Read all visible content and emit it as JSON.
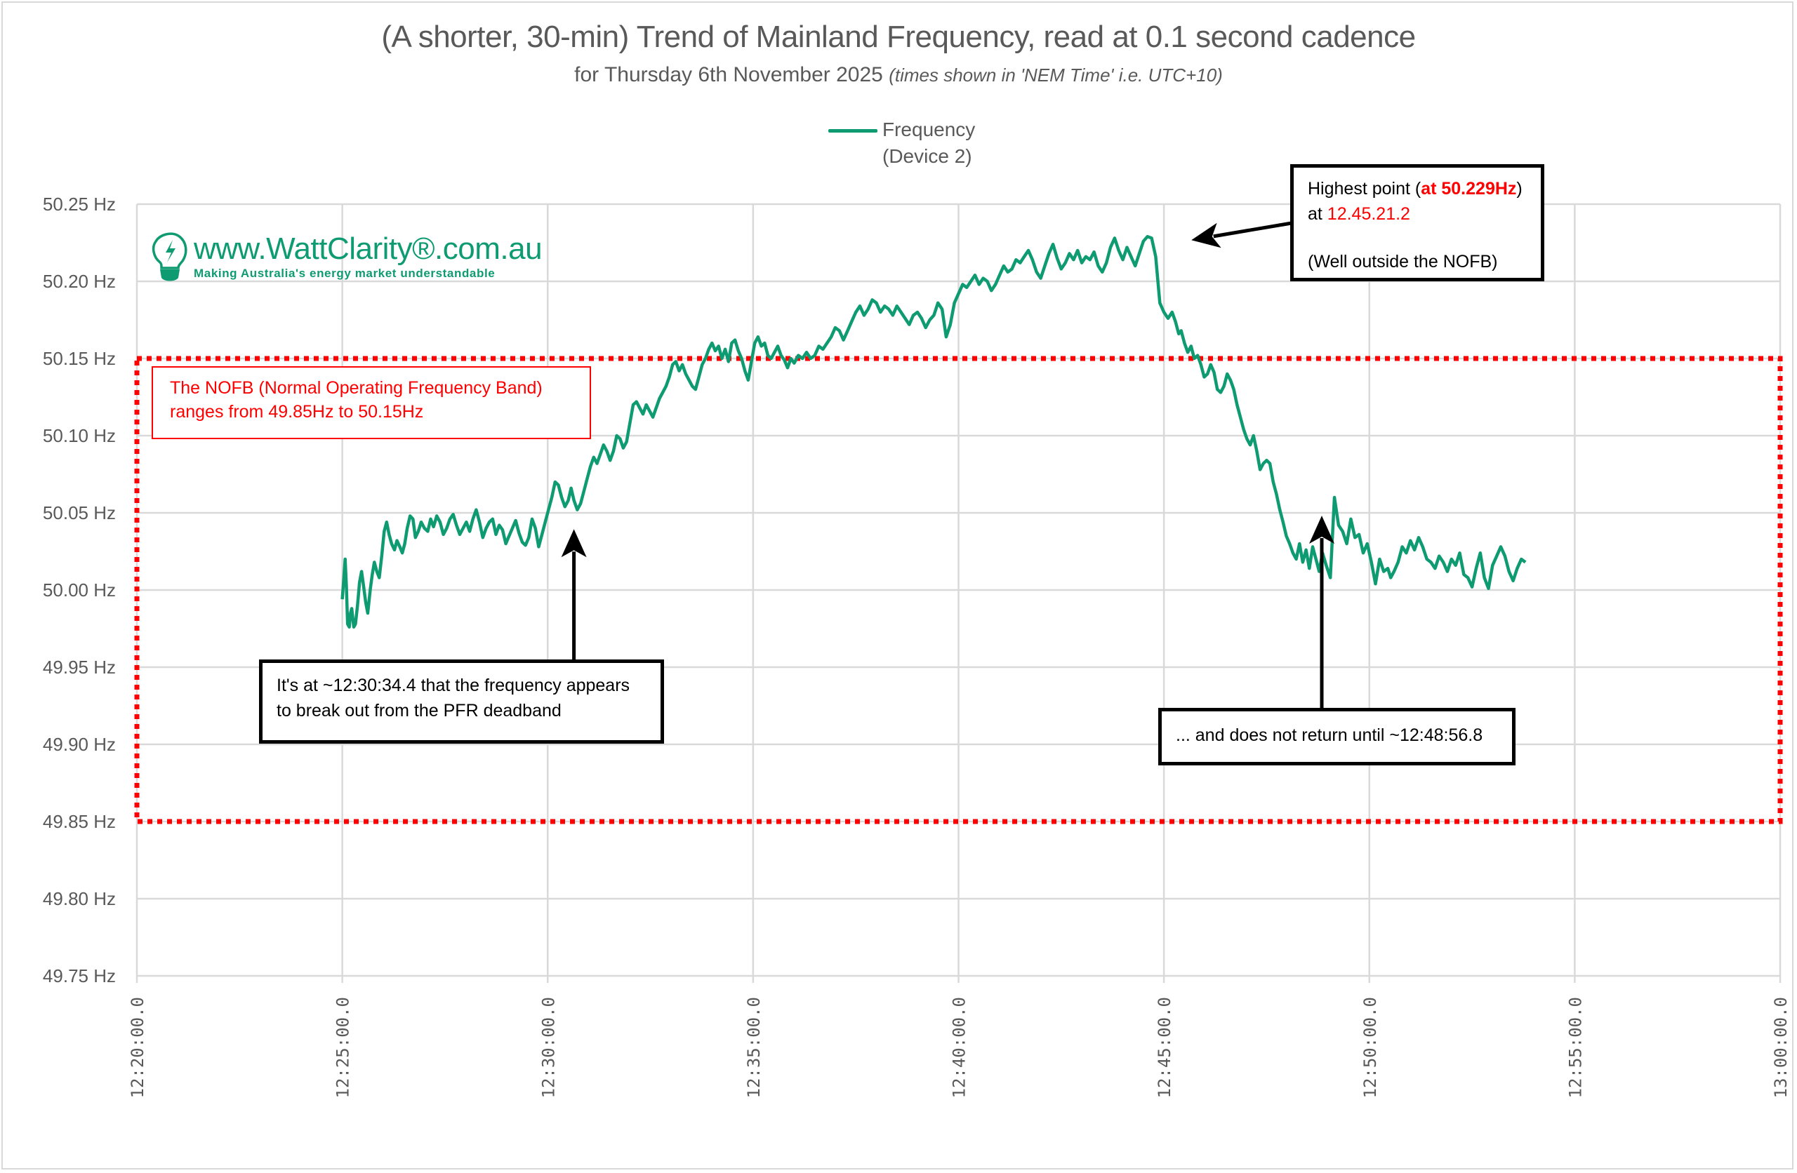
{
  "chart_data": {
    "type": "line",
    "title": "(A shorter, 30-min) Trend of Mainland Frequency, read at 0.1 second cadence",
    "subtitle": "for Thursday 6th November 2025",
    "subtitle_note": "(times shown in 'NEM Time' i.e. UTC+10)",
    "xlabel": "",
    "ylabel": "",
    "grid": true,
    "legend_position": "top-center",
    "x_ticks": [
      "12:20:00.0",
      "12:25:00.0",
      "12:30:00.0",
      "12:35:00.0",
      "12:40:00.0",
      "12:45:00.0",
      "12:50:00.0",
      "12:55:00.0",
      "13:00:00.0"
    ],
    "x_range_minutes_after_1220": [
      0,
      40
    ],
    "y_ticks": [
      "49.75 Hz",
      "49.80 Hz",
      "49.85 Hz",
      "49.90 Hz",
      "49.95 Hz",
      "50.00 Hz",
      "50.05 Hz",
      "50.10 Hz",
      "50.15 Hz",
      "50.20 Hz",
      "50.25 Hz"
    ],
    "ylim": [
      49.75,
      50.25
    ],
    "series": [
      {
        "name": "Frequency\n(Device 2)",
        "color": "#0f9b72",
        "x_minutes_after_1220": [
          5.0,
          5.03,
          5.07,
          5.1,
          5.13,
          5.17,
          5.2,
          5.23,
          5.28,
          5.32,
          5.37,
          5.42,
          5.47,
          5.52,
          5.57,
          5.62,
          5.68,
          5.73,
          5.78,
          5.84,
          5.9,
          5.96,
          6.02,
          6.08,
          6.14,
          6.2,
          6.27,
          6.33,
          6.4,
          6.46,
          6.52,
          6.58,
          6.65,
          6.72,
          6.78,
          6.85,
          6.92,
          7.0,
          7.08,
          7.15,
          7.22,
          7.3,
          7.38,
          7.46,
          7.54,
          7.62,
          7.7,
          7.78,
          7.86,
          7.94,
          8.02,
          8.1,
          8.18,
          8.26,
          8.34,
          8.42,
          8.5,
          8.58,
          8.66,
          8.74,
          8.82,
          8.9,
          8.98,
          9.06,
          9.14,
          9.22,
          9.3,
          9.38,
          9.46,
          9.54,
          9.62,
          9.7,
          9.78,
          9.86,
          9.94,
          10.02,
          10.1,
          10.18,
          10.26,
          10.34,
          10.42,
          10.5,
          10.57,
          10.64,
          10.72,
          10.8,
          10.88,
          10.96,
          11.04,
          11.12,
          11.2,
          11.28,
          11.36,
          11.44,
          11.52,
          11.6,
          11.68,
          11.76,
          11.84,
          11.92,
          12.0,
          12.08,
          12.16,
          12.24,
          12.32,
          12.4,
          12.48,
          12.56,
          12.64,
          12.72,
          12.8,
          12.88,
          12.96,
          13.04,
          13.12,
          13.2,
          13.28,
          13.36,
          13.44,
          13.52,
          13.6,
          13.68,
          13.76,
          13.84,
          13.92,
          14.0,
          14.08,
          14.16,
          14.24,
          14.32,
          14.4,
          14.48,
          14.56,
          14.64,
          14.72,
          14.8,
          14.88,
          14.96,
          15.04,
          15.12,
          15.2,
          15.28,
          15.36,
          15.44,
          15.52,
          15.6,
          15.68,
          15.76,
          15.84,
          15.92,
          16.0,
          16.1,
          16.2,
          16.3,
          16.4,
          16.5,
          16.6,
          16.7,
          16.8,
          16.9,
          17.0,
          17.1,
          17.2,
          17.3,
          17.4,
          17.5,
          17.6,
          17.7,
          17.8,
          17.9,
          18.0,
          18.1,
          18.2,
          18.3,
          18.4,
          18.5,
          18.6,
          18.7,
          18.8,
          18.9,
          19.0,
          19.1,
          19.2,
          19.3,
          19.4,
          19.5,
          19.6,
          19.7,
          19.8,
          19.9,
          20.0,
          20.1,
          20.2,
          20.3,
          20.4,
          20.5,
          20.6,
          20.7,
          20.8,
          20.9,
          21.0,
          21.1,
          21.2,
          21.3,
          21.4,
          21.5,
          21.6,
          21.7,
          21.8,
          21.9,
          22.0,
          22.1,
          22.2,
          22.3,
          22.4,
          22.5,
          22.6,
          22.7,
          22.8,
          22.9,
          23.0,
          23.1,
          23.2,
          23.3,
          23.4,
          23.5,
          23.6,
          23.7,
          23.8,
          23.9,
          24.0,
          24.1,
          24.2,
          24.3,
          24.4,
          24.5,
          24.6,
          24.7,
          24.8,
          24.9,
          25.0,
          25.1,
          25.2,
          25.28,
          25.36,
          25.42,
          25.5,
          25.58,
          25.66,
          25.74,
          25.82,
          25.9,
          25.98,
          26.06,
          26.14,
          26.22,
          26.3,
          26.38,
          26.46,
          26.54,
          26.62,
          26.7,
          26.78,
          26.86,
          26.94,
          27.02,
          27.1,
          27.18,
          27.26,
          27.34,
          27.42,
          27.5,
          27.58,
          27.66,
          27.74,
          27.82,
          27.9,
          27.98,
          28.06,
          28.14,
          28.22,
          28.3,
          28.38,
          28.46,
          28.54,
          28.62,
          28.7,
          28.78,
          28.86,
          28.95,
          29.05,
          29.15,
          29.25,
          29.35,
          29.45,
          29.55,
          29.65,
          29.75,
          29.85,
          29.95,
          30.05,
          30.15,
          30.25,
          30.35,
          30.45,
          30.52,
          30.6,
          30.7,
          30.8,
          30.9,
          31.0,
          31.1,
          31.2,
          31.3,
          31.4,
          31.5,
          31.6,
          31.7,
          31.8,
          31.9,
          32.0,
          32.1,
          32.2,
          32.3,
          32.4,
          32.5,
          32.6,
          32.7,
          32.8,
          32.9,
          33.0,
          33.1,
          33.2,
          33.3,
          33.4,
          33.5,
          33.6,
          33.7,
          33.8,
          33.9,
          34.0,
          34.1,
          34.2,
          34.3,
          34.4,
          34.5,
          34.6,
          34.7,
          34.8,
          34.9,
          35.0
        ],
        "values": [
          49.994,
          50.005,
          50.02,
          50.002,
          49.978,
          49.976,
          49.985,
          49.988,
          49.976,
          49.978,
          49.99,
          50.005,
          50.012,
          50.002,
          49.992,
          49.985,
          50.0,
          50.01,
          50.018,
          50.012,
          50.008,
          50.022,
          50.038,
          50.044,
          50.036,
          50.03,
          50.026,
          50.032,
          50.028,
          50.024,
          50.03,
          50.04,
          50.048,
          50.046,
          50.034,
          50.038,
          50.044,
          50.04,
          50.038,
          50.046,
          50.041,
          50.048,
          50.044,
          50.036,
          50.04,
          50.046,
          50.049,
          50.042,
          50.036,
          50.04,
          50.044,
          50.038,
          50.046,
          50.052,
          50.044,
          50.034,
          50.04,
          50.044,
          50.046,
          50.036,
          50.042,
          50.039,
          50.03,
          50.035,
          50.04,
          50.045,
          50.037,
          50.031,
          50.029,
          50.034,
          50.046,
          50.04,
          50.028,
          50.036,
          50.044,
          50.052,
          50.06,
          50.07,
          50.068,
          50.06,
          50.054,
          50.058,
          50.066,
          50.058,
          50.052,
          50.056,
          50.064,
          50.072,
          50.08,
          50.086,
          50.082,
          50.088,
          50.094,
          50.09,
          50.084,
          50.09,
          50.1,
          50.098,
          50.092,
          50.096,
          50.108,
          50.12,
          50.122,
          50.118,
          50.114,
          50.12,
          50.116,
          50.112,
          50.118,
          50.124,
          50.128,
          50.132,
          50.138,
          50.146,
          50.148,
          50.142,
          50.146,
          50.14,
          50.136,
          50.132,
          50.13,
          50.138,
          50.146,
          50.15,
          50.156,
          50.16,
          50.155,
          50.158,
          50.15,
          50.156,
          50.148,
          50.16,
          50.162,
          50.155,
          50.15,
          50.142,
          50.136,
          50.148,
          50.16,
          50.164,
          50.158,
          50.16,
          50.152,
          50.15,
          50.154,
          50.158,
          50.152,
          50.149,
          50.144,
          50.15,
          50.147,
          50.152,
          50.15,
          50.154,
          50.15,
          50.152,
          50.158,
          50.156,
          50.16,
          50.164,
          50.17,
          50.168,
          50.162,
          50.168,
          50.174,
          50.18,
          50.184,
          50.178,
          50.182,
          50.188,
          50.186,
          50.18,
          50.184,
          50.182,
          50.178,
          50.184,
          50.18,
          50.176,
          50.172,
          50.178,
          50.18,
          50.176,
          50.17,
          50.175,
          50.178,
          50.186,
          50.182,
          50.164,
          50.172,
          50.186,
          50.192,
          50.198,
          50.196,
          50.2,
          50.204,
          50.198,
          50.202,
          50.2,
          50.194,
          50.198,
          50.204,
          50.21,
          50.206,
          50.208,
          50.214,
          50.212,
          50.216,
          50.22,
          50.214,
          50.206,
          50.202,
          50.21,
          50.218,
          50.224,
          50.215,
          50.208,
          50.212,
          50.218,
          50.214,
          50.22,
          50.212,
          50.216,
          50.214,
          50.219,
          50.21,
          50.206,
          50.212,
          50.222,
          50.228,
          50.22,
          50.214,
          50.222,
          50.216,
          50.21,
          50.218,
          50.226,
          50.229,
          50.228,
          50.216,
          50.186,
          50.18,
          50.176,
          50.18,
          50.174,
          50.166,
          50.168,
          50.16,
          50.154,
          50.158,
          50.15,
          50.152,
          50.146,
          50.138,
          50.14,
          50.146,
          50.141,
          50.13,
          50.128,
          50.132,
          50.14,
          50.136,
          50.13,
          50.12,
          50.112,
          50.104,
          50.098,
          50.094,
          50.1,
          50.09,
          50.078,
          50.082,
          50.084,
          50.082,
          50.07,
          50.062,
          50.052,
          50.044,
          50.035,
          50.03,
          50.024,
          50.02,
          50.03,
          50.018,
          50.026,
          50.014,
          50.028,
          50.02,
          50.012,
          50.024,
          50.016,
          50.008,
          50.06,
          50.042,
          50.038,
          50.03,
          50.046,
          50.034,
          50.036,
          50.024,
          50.03,
          50.018,
          50.004,
          50.02,
          50.012,
          50.014,
          50.008,
          50.012,
          50.018,
          50.028,
          50.024,
          50.032,
          50.026,
          50.034,
          50.028,
          50.02,
          50.018,
          50.014,
          50.022,
          50.018,
          50.012,
          50.02,
          50.016,
          50.024,
          50.01,
          50.008,
          50.002,
          50.014,
          50.024,
          50.008,
          50.001,
          50.016,
          50.022,
          50.028,
          50.022,
          50.012,
          50.006,
          50.014,
          50.02,
          50.018
        ]
      }
    ],
    "bands": [
      {
        "name": "NOFB",
        "ymin": 49.85,
        "ymax": 50.15,
        "style": "dotted",
        "color": "#ff0000"
      }
    ],
    "annotations": [
      {
        "id": "peak",
        "target_x_minutes": 25.36,
        "target_y": 50.229
      },
      {
        "id": "breakout",
        "target_x_minutes": 10.57,
        "target_y": 50.044
      },
      {
        "id": "return",
        "target_x_minutes": 28.95,
        "target_y": 50.05
      }
    ]
  },
  "legend": {
    "line1": "Frequency",
    "line2": "(Device 2)"
  },
  "nofb_note": {
    "line1": "The NOFB  (Normal Operating Frequency Band)",
    "line2": "ranges from 49.85Hz to 50.15Hz"
  },
  "peak_note": {
    "prefix": "Highest point (",
    "value": "at 50.229Hz",
    "suffix": ")",
    "at": "at ",
    "time": "12.45.21.2",
    "line3": "(Well outside the NOFB)"
  },
  "breakout_note": {
    "line1": "It's at ~12:30:34.4 that the frequency appears",
    "line2": "to break out from the PFR deadband"
  },
  "return_note": {
    "text": "... and does not return until ~12:48:56.8"
  },
  "logo": {
    "url": "www.WattClarity®.com.au",
    "tagline": "Making Australia's energy market understandable",
    "icon": "lightbulb-bolt-icon"
  }
}
